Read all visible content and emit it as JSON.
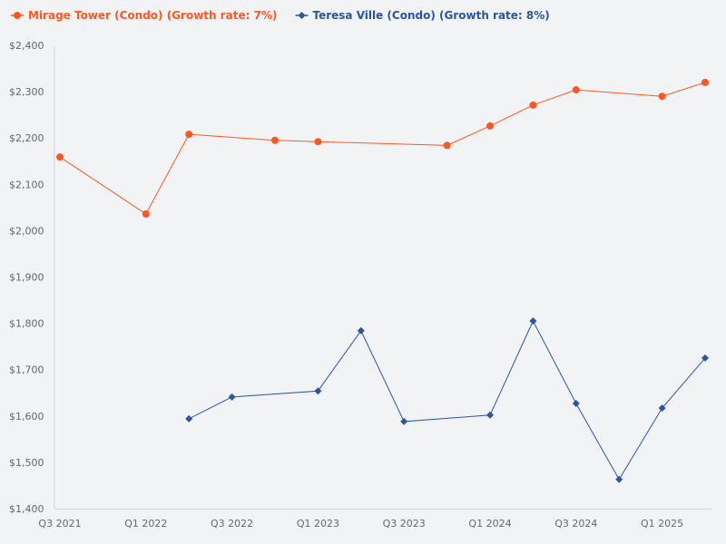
{
  "chart_data": {
    "type": "line",
    "title": "",
    "xlabel": "",
    "ylabel": "",
    "ylim": [
      1400,
      2400
    ],
    "y_ticks": [
      "$1,400",
      "$1,500",
      "$1,600",
      "$1,700",
      "$1,800",
      "$1,900",
      "$2,000",
      "$2,100",
      "$2,200",
      "$2,300",
      "$2,400"
    ],
    "y_tick_values": [
      1400,
      1500,
      1600,
      1700,
      1800,
      1900,
      2000,
      2100,
      2200,
      2300,
      2400
    ],
    "categories": [
      "Q3 2021",
      "Q4 2021",
      "Q1 2022",
      "Q2 2022",
      "Q3 2022",
      "Q4 2022",
      "Q1 2023",
      "Q2 2023",
      "Q3 2023",
      "Q4 2023",
      "Q1 2024",
      "Q2 2024",
      "Q3 2024",
      "Q4 2024",
      "Q1 2025",
      "Q2 2025"
    ],
    "x_tick_labels": [
      "Q3 2021",
      "Q1 2022",
      "Q3 2022",
      "Q1 2023",
      "Q3 2023",
      "Q1 2024",
      "Q3 2024",
      "Q1 2025"
    ],
    "legend_position": "top-left",
    "grid": false,
    "series": [
      {
        "name": "Mirage Tower (Condo) (Growth rate: 7%)",
        "color": "#ff5722",
        "marker": "circle",
        "values": [
          2159,
          null,
          2036,
          2208,
          null,
          2195,
          2192,
          null,
          null,
          2184,
          2226,
          2271,
          2304,
          null,
          2290,
          2320
        ]
      },
      {
        "name": "Teresa Ville (Condo) (Growth rate: 8%)",
        "color": "#2b55a4",
        "marker": "diamond",
        "values": [
          null,
          null,
          null,
          1594,
          1641,
          null,
          1654,
          1784,
          1588,
          null,
          1602,
          1805,
          1627,
          1463,
          1617,
          1725
        ]
      }
    ]
  }
}
